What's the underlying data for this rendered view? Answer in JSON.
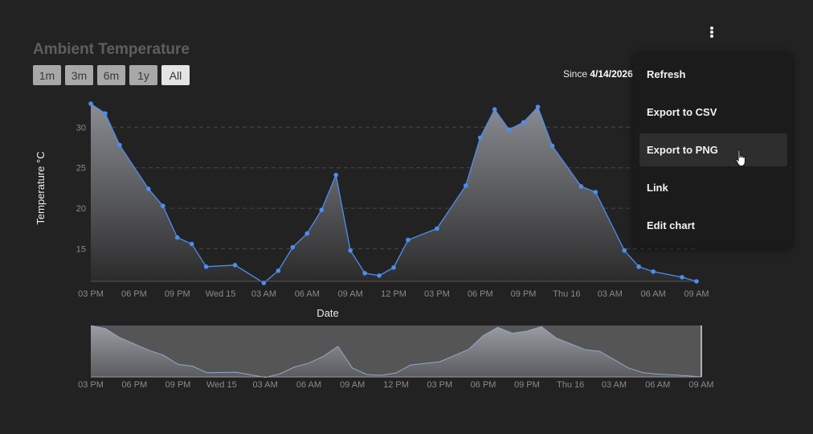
{
  "header": {
    "title": "Ambient Temperature",
    "ranges": [
      "1m",
      "3m",
      "6m",
      "1y",
      "All"
    ],
    "active_range": "All",
    "since_label": "Since",
    "since_date": "4/14/2026"
  },
  "menu": {
    "items": [
      "Refresh",
      "Export to CSV",
      "Export to PNG",
      "Link",
      "Edit chart"
    ],
    "hovered": "Export to PNG"
  },
  "icons": {
    "menu": "kebab-icon",
    "cursor": "hand-pointer-icon"
  },
  "colors": {
    "background": "#222222",
    "line": "#4c8ef0",
    "area_top": "#8a8c92",
    "area_bottom": "#2a2a2a",
    "grid": "#4a4a4a",
    "axis_text": "#8a8a8a"
  },
  "chart_data": {
    "type": "area",
    "xlabel": "Date",
    "ylabel": "Temperature °C",
    "ylim": [
      11,
      33
    ],
    "yticks": [
      15,
      20,
      25,
      30
    ],
    "grid": true,
    "x_tick_labels": [
      "03 PM",
      "06 PM",
      "09 PM",
      "Wed 15",
      "03 AM",
      "06 AM",
      "09 AM",
      "12 PM",
      "03 PM",
      "06 PM",
      "09 PM",
      "Thu 16",
      "03 AM",
      "06 AM",
      "09 AM"
    ],
    "x_range_hours": [
      15,
      57
    ],
    "series": [
      {
        "x": [
          15,
          16,
          17,
          19,
          20,
          21,
          22,
          23,
          25,
          27,
          28,
          29,
          30,
          31,
          32,
          33,
          34,
          35,
          36,
          37,
          39,
          41,
          42,
          43,
          44,
          45,
          46,
          47,
          49,
          50,
          52,
          53,
          54,
          56,
          57
        ],
        "values": [
          32.9,
          31.7,
          27.8,
          22.4,
          20.3,
          16.4,
          15.6,
          12.8,
          13.0,
          10.8,
          12.3,
          15.2,
          16.9,
          19.8,
          24.1,
          14.8,
          12.0,
          11.7,
          12.7,
          16.1,
          17.5,
          22.8,
          28.7,
          32.2,
          29.7,
          30.6,
          32.5,
          27.7,
          22.7,
          22.0,
          14.8,
          12.8,
          12.2,
          11.5,
          11.0
        ]
      }
    ],
    "navigator": {
      "enabled": true,
      "x_tick_labels": [
        "03 PM",
        "06 PM",
        "09 PM",
        "Wed 15",
        "03 AM",
        "06 AM",
        "09 AM",
        "12 PM",
        "03 PM",
        "06 PM",
        "09 PM",
        "Thu 16",
        "03 AM",
        "06 AM",
        "09 AM"
      ]
    }
  }
}
